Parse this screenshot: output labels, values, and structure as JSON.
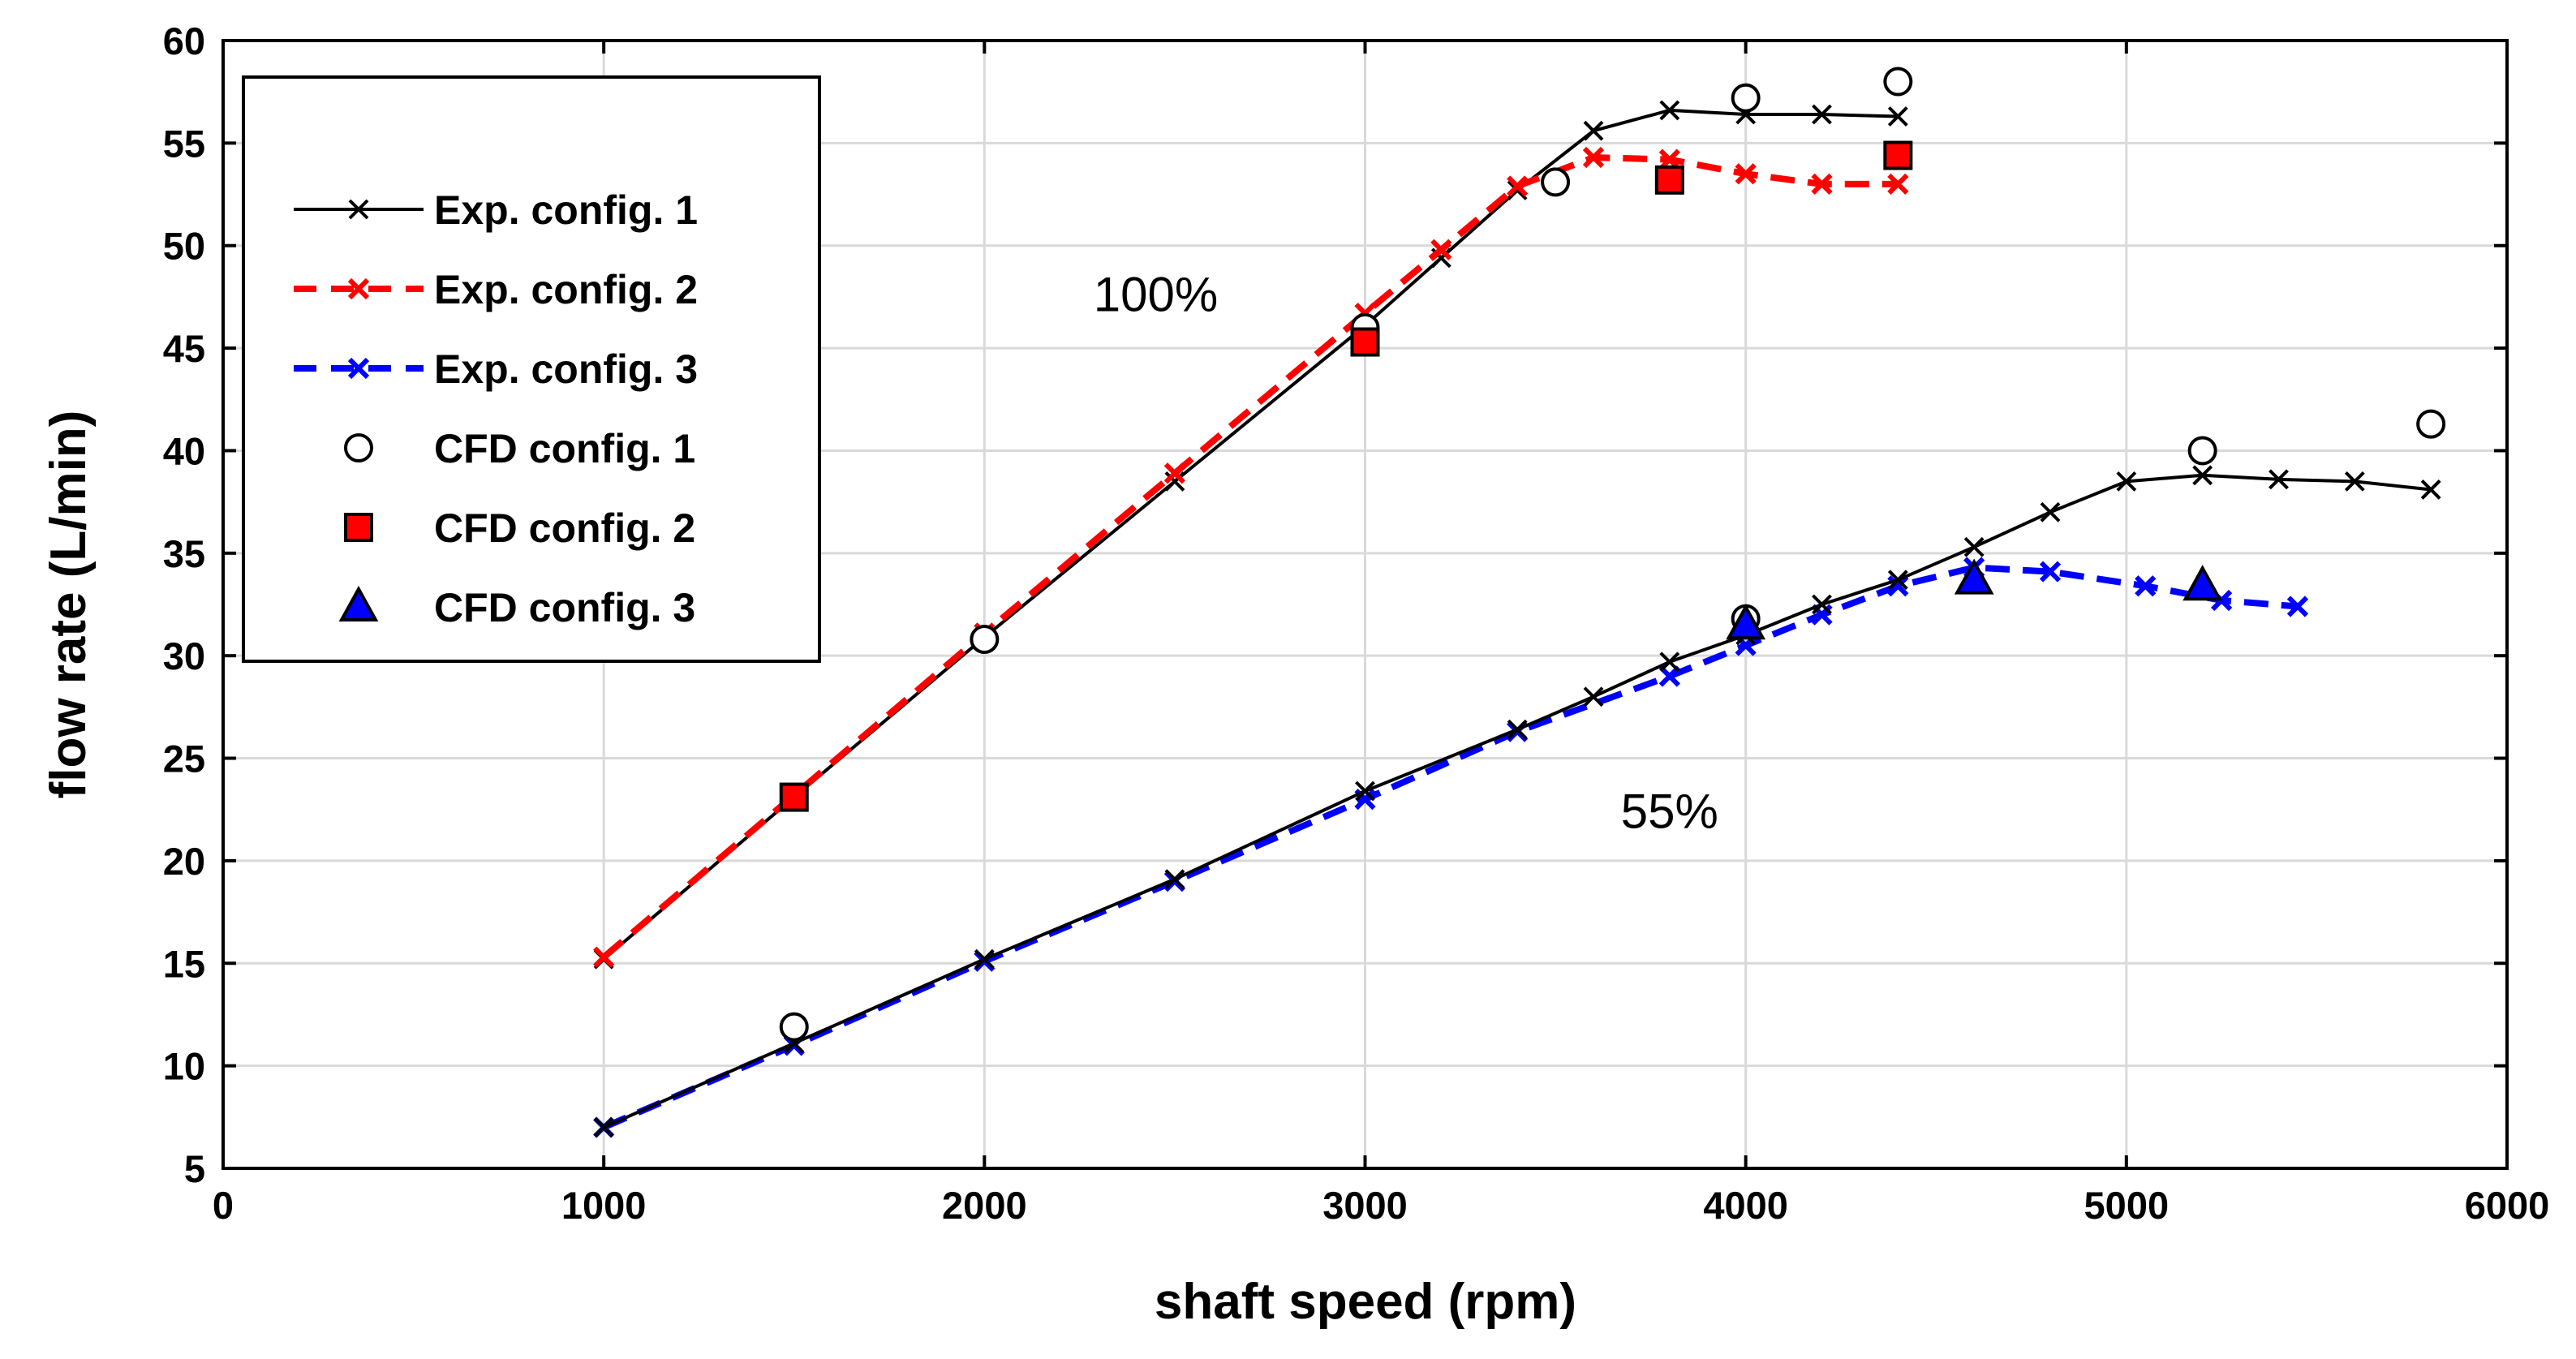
{
  "chart_data": {
    "type": "line",
    "title": "",
    "xlabel": "shaft speed (rpm)",
    "ylabel": "flow rate (L/min)",
    "xlim": [
      0,
      6000
    ],
    "ylim": [
      5,
      60
    ],
    "xticks": [
      0,
      1000,
      2000,
      3000,
      4000,
      5000,
      6000
    ],
    "yticks": [
      5,
      10,
      15,
      20,
      25,
      30,
      35,
      40,
      45,
      50,
      55,
      60
    ],
    "grid": true,
    "legend_position": "top-left",
    "annotations": [
      {
        "text": "100%",
        "x": 2450,
        "y": 46.8
      },
      {
        "text": "55%",
        "x": 3800,
        "y": 21.6
      }
    ],
    "series": [
      {
        "name": "Exp. config. 1",
        "style": "solid",
        "marker": "x",
        "color": "#000000",
        "x": [
          1000,
          1500,
          2000,
          2500,
          3000,
          3200,
          3400,
          3600,
          3800,
          4000,
          4200,
          4400
        ],
        "y": [
          15.2,
          23.1,
          30.9,
          38.5,
          46.1,
          49.4,
          52.7,
          55.6,
          56.6,
          56.4,
          56.4,
          56.3
        ]
      },
      {
        "name": "Exp. config. 2",
        "style": "dashed",
        "marker": "x",
        "color": "#ff0000",
        "x": [
          1000,
          1500,
          2000,
          2500,
          3000,
          3200,
          3400,
          3600,
          3800,
          4000,
          4200,
          4400
        ],
        "y": [
          15.3,
          23.2,
          31.1,
          38.9,
          46.7,
          49.8,
          52.9,
          54.3,
          54.2,
          53.5,
          53.0,
          53.0
        ]
      },
      {
        "name": "Exp. config. 3",
        "style": "dashed",
        "marker": "x",
        "color": "#0000ff",
        "x": [
          1000,
          1500,
          2000,
          2500,
          3000,
          3400,
          3800,
          4000,
          4200,
          4400,
          4600,
          4800,
          5050,
          5250,
          5450
        ],
        "y": [
          7.0,
          11.0,
          15.1,
          19.0,
          23.0,
          26.3,
          29.0,
          30.5,
          32.0,
          33.4,
          34.3,
          34.1,
          33.4,
          32.7,
          32.4
        ]
      },
      {
        "name": "Exp. config. 1",
        "style": "solid",
        "marker": "x",
        "color": "#000000",
        "x": [
          1000,
          1500,
          2000,
          2500,
          3000,
          3400,
          3600,
          3800,
          4000,
          4200,
          4400,
          4600,
          4800,
          5000,
          5200,
          5400,
          5600,
          5800
        ],
        "y": [
          7.0,
          11.1,
          15.2,
          19.1,
          23.4,
          26.4,
          28.0,
          29.7,
          31.0,
          32.5,
          33.7,
          35.3,
          37.0,
          38.5,
          38.8,
          38.6,
          38.5,
          38.1
        ]
      },
      {
        "name": "CFD config. 1",
        "style": "none",
        "marker": "circle",
        "color": "#000000",
        "x": [
          2000,
          3000,
          3500,
          4000,
          4400,
          1500,
          4000,
          5200,
          5800
        ],
        "y": [
          30.8,
          46.0,
          53.1,
          57.2,
          58.0,
          11.9,
          31.8,
          40.0,
          41.3
        ]
      },
      {
        "name": "CFD config. 2",
        "style": "none",
        "marker": "square",
        "color": "#ff0000",
        "x": [
          1500,
          3000,
          3800,
          4400
        ],
        "y": [
          23.1,
          45.3,
          53.2,
          54.4
        ]
      },
      {
        "name": "CFD config. 3",
        "style": "none",
        "marker": "triangle",
        "color": "#0000ff",
        "x": [
          4000,
          4600,
          5200
        ],
        "y": [
          31.5,
          33.7,
          33.4
        ]
      }
    ],
    "legend": [
      {
        "label": "Exp. config. 1",
        "style": "solid",
        "marker": "x",
        "color": "#000000"
      },
      {
        "label": "Exp. config. 2",
        "style": "dashed",
        "marker": "x",
        "color": "#ff0000"
      },
      {
        "label": "Exp. config. 3",
        "style": "dashed",
        "marker": "x",
        "color": "#0000ff"
      },
      {
        "label": "CFD config. 1",
        "style": "none",
        "marker": "circle",
        "color": "#000000"
      },
      {
        "label": "CFD config. 2",
        "style": "none",
        "marker": "square",
        "color": "#ff0000"
      },
      {
        "label": "CFD config. 3",
        "style": "none",
        "marker": "triangle",
        "color": "#0000ff"
      }
    ]
  }
}
